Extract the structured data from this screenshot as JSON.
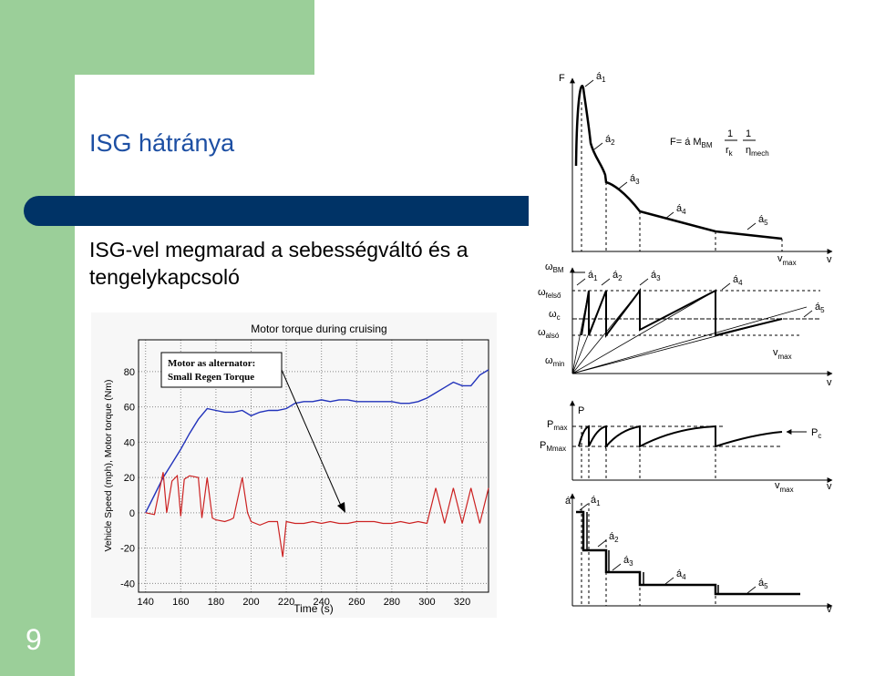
{
  "slide": {
    "title": "ISG hátránya",
    "bullet": "ISG-vel megmarad a sebességváltó és a tengelykapcsoló",
    "page_number": "9"
  },
  "left_chart": {
    "title": "Motor torque during cruising",
    "xlabel": "Time (s)",
    "ylabel": "Vehicle Speed (mph), Motor torque (Nm)",
    "annotation_line1": "Motor as alternator:",
    "annotation_line2": "Small Regen Torque",
    "x_ticks": [
      "140",
      "160",
      "180",
      "200",
      "220",
      "240",
      "260",
      "280",
      "300",
      "320"
    ],
    "y_ticks": [
      "80",
      "60",
      "40",
      "20",
      "0",
      "-20",
      "-40"
    ]
  },
  "chart_data": {
    "type": "line",
    "title": "Motor torque during cruising",
    "xlabel": "Time (s)",
    "ylabel": "Vehicle Speed (mph), Motor torque (Nm)",
    "xlim": [
      136,
      335
    ],
    "ylim": [
      -45,
      98
    ],
    "grid": true,
    "series": [
      {
        "color": "#2233bb",
        "x": [
          140,
          145,
          150,
          155,
          160,
          165,
          170,
          175,
          180,
          185,
          190,
          195,
          200,
          205,
          210,
          215,
          220,
          225,
          230,
          235,
          240,
          245,
          250,
          255,
          260,
          265,
          270,
          275,
          280,
          285,
          290,
          295,
          300,
          305,
          310,
          315,
          320,
          325,
          330,
          335
        ],
        "y": [
          0,
          10,
          20,
          28,
          36,
          45,
          53,
          59,
          58,
          57,
          57,
          58,
          55,
          57,
          58,
          58,
          59,
          62,
          63,
          63,
          64,
          63,
          64,
          64,
          63,
          63,
          63,
          63,
          63,
          62,
          62,
          63,
          65,
          68,
          71,
          74,
          72,
          72,
          78,
          81
        ]
      },
      {
        "color": "#cc2222",
        "x": [
          140,
          145,
          150,
          152,
          155,
          158,
          160,
          162,
          165,
          170,
          172,
          175,
          178,
          180,
          185,
          188,
          190,
          195,
          198,
          200,
          205,
          210,
          215,
          218,
          220,
          225,
          230,
          235,
          240,
          245,
          250,
          255,
          260,
          265,
          270,
          275,
          280,
          285,
          290,
          295,
          300,
          305,
          310,
          315,
          320,
          325,
          330,
          335
        ],
        "y": [
          0,
          -1,
          23,
          0,
          18,
          21,
          -2,
          19,
          21,
          20,
          -3,
          20,
          -3,
          -4,
          -5,
          -4,
          -3,
          20,
          0,
          -5,
          -7,
          -5,
          -5,
          -25,
          -5,
          -6,
          -6,
          -5,
          -6,
          -5,
          -6,
          -6,
          -5,
          -5,
          -5,
          -6,
          -6,
          -5,
          -6,
          -5,
          -6,
          14,
          -6,
          14,
          -6,
          14,
          -6,
          14
        ]
      }
    ]
  },
  "right_diagram": {
    "force_label": "F",
    "formula": "F= á M",
    "formula_sub": "BM",
    "r_k": "r",
    "r_k_sub": "k",
    "eta": "η",
    "eta_sub": "mech",
    "one": "1",
    "gear": "á",
    "gear_subs": [
      "1",
      "2",
      "3",
      "4",
      "5"
    ],
    "v": "v",
    "v_max_sub": "max",
    "omega": "ω",
    "omega_BM_sub": "BM",
    "omega_felso_sub": "felső",
    "omega_c_sub": "c",
    "omega_also_sub": "alsó",
    "omega_min_sub": "min",
    "P": "P",
    "P_max_sub": "max",
    "P_Mmax_sub": "Mmax",
    "P_c_sub": "c"
  }
}
